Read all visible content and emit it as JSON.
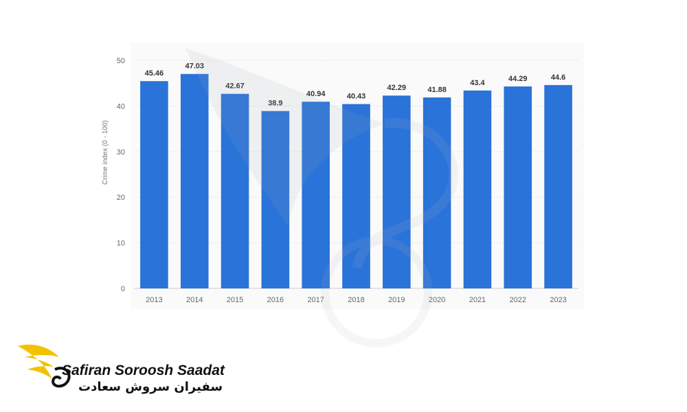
{
  "chart_data": {
    "type": "bar",
    "categories": [
      "2013",
      "2014",
      "2015",
      "2016",
      "2017",
      "2018",
      "2019",
      "2020",
      "2021",
      "2022",
      "2023"
    ],
    "values": [
      45.46,
      47.03,
      42.67,
      38.9,
      40.94,
      40.43,
      42.29,
      41.88,
      43.4,
      44.29,
      44.6
    ],
    "value_labels": [
      "45.46",
      "47.03",
      "42.67",
      "38.9",
      "40.94",
      "40.43",
      "42.29",
      "41.88",
      "43.4",
      "44.29",
      "44.6"
    ],
    "ylabel": "Crime index (0 - 100)",
    "yticks": [
      "0",
      "10",
      "20",
      "30",
      "40",
      "50"
    ],
    "ylim": [
      0,
      50
    ],
    "grid": true,
    "bar_color": "#2a73d9"
  },
  "logo": {
    "name_en": "Safiran Soroosh Saadat",
    "name_fa": "سفیران سروش سعادت",
    "accent_color": "#f2c200"
  }
}
